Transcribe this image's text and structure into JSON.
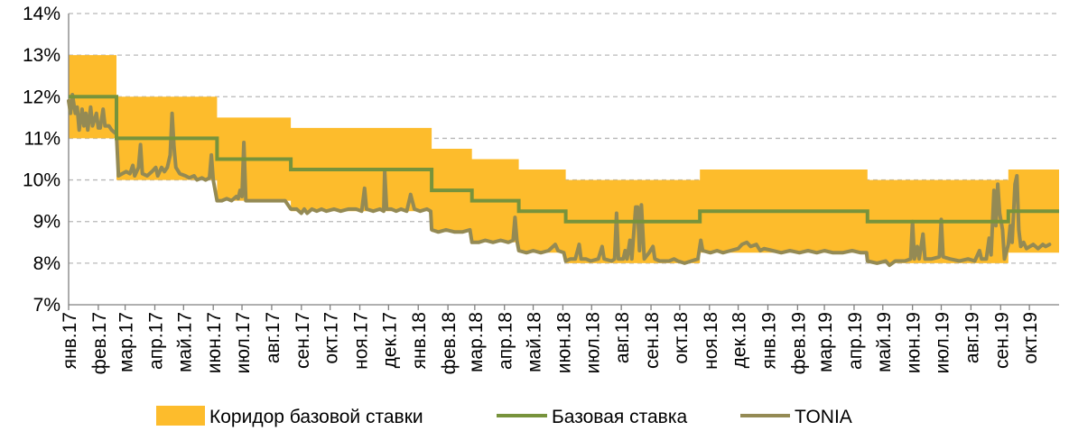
{
  "colors": {
    "corridor": "#FDBC2C",
    "base_rate": "#77933C",
    "tonia": "#948A54",
    "grid": "#B8B8B8"
  },
  "chart_data": {
    "type": "line",
    "title": "",
    "xlabel": "",
    "ylabel": "",
    "ylim": [
      7,
      14
    ],
    "yticks": [
      7,
      8,
      9,
      10,
      11,
      12,
      13,
      14
    ],
    "ytick_labels": [
      "7%",
      "8%",
      "9%",
      "10%",
      "11%",
      "12%",
      "13%",
      "14%"
    ],
    "xlim": [
      "2017-01-01",
      "2019-11-01"
    ],
    "month_labels": [
      "янв.17",
      "фев.17",
      "мар.17",
      "апр.17",
      "май.17",
      "июн.17",
      "июл.17",
      "авг.17",
      "сен.17",
      "окт.17",
      "ноя.17",
      "дек.17",
      "янв.18",
      "фев.18",
      "мар.18",
      "апр.18",
      "май.18",
      "июн.18",
      "июл.18",
      "авг.18",
      "сен.18",
      "окт.18",
      "ноя.18",
      "дек.18",
      "янв.19",
      "фев.19",
      "мар.19",
      "апр.19",
      "май.19",
      "июн.19",
      "июл.19",
      "авг.19",
      "сен.19",
      "окт.19"
    ],
    "grid": true,
    "legend_position": "bottom",
    "legend": [
      {
        "key": "corridor",
        "label": "Коридор базовой ставки"
      },
      {
        "key": "base_rate",
        "label": "Базовая ставка"
      },
      {
        "key": "tonia",
        "label": "TONIA"
      }
    ],
    "series": [
      {
        "name": "Коридор базовой ставки",
        "type": "band",
        "steps": [
          {
            "from": "2017-01-01",
            "to": "2017-02-20",
            "low": 11.0,
            "high": 13.0
          },
          {
            "from": "2017-02-20",
            "to": "2017-06-05",
            "low": 10.0,
            "high": 12.0
          },
          {
            "from": "2017-06-05",
            "to": "2017-08-21",
            "low": 9.5,
            "high": 11.5
          },
          {
            "from": "2017-08-21",
            "to": "2018-01-15",
            "low": 9.25,
            "high": 11.25
          },
          {
            "from": "2018-01-15",
            "to": "2018-02-26",
            "low": 8.75,
            "high": 10.75
          },
          {
            "from": "2018-02-26",
            "to": "2018-04-16",
            "low": 8.5,
            "high": 10.5
          },
          {
            "from": "2018-04-16",
            "to": "2018-06-04",
            "low": 8.25,
            "high": 10.25
          },
          {
            "from": "2018-06-04",
            "to": "2018-10-22",
            "low": 8.0,
            "high": 10.0
          },
          {
            "from": "2018-10-22",
            "to": "2019-04-15",
            "low": 8.25,
            "high": 10.25
          },
          {
            "from": "2019-04-15",
            "to": "2019-09-09",
            "low": 8.0,
            "high": 10.0
          },
          {
            "from": "2019-09-09",
            "to": "2019-11-01",
            "low": 8.25,
            "high": 10.25
          }
        ]
      },
      {
        "name": "Базовая ставка",
        "type": "step",
        "steps": [
          {
            "from": "2017-01-01",
            "value": 12.0
          },
          {
            "from": "2017-02-20",
            "value": 11.0
          },
          {
            "from": "2017-06-05",
            "value": 10.5
          },
          {
            "from": "2017-08-21",
            "value": 10.25
          },
          {
            "from": "2018-01-15",
            "value": 9.75
          },
          {
            "from": "2018-02-26",
            "value": 9.5
          },
          {
            "from": "2018-04-16",
            "value": 9.25
          },
          {
            "from": "2018-06-04",
            "value": 9.0
          },
          {
            "from": "2018-10-22",
            "value": 9.25
          },
          {
            "from": "2019-04-15",
            "value": 9.0
          },
          {
            "from": "2019-09-09",
            "value": 9.25
          }
        ],
        "end": "2019-11-01"
      },
      {
        "name": "TONIA",
        "type": "line",
        "points": [
          [
            "2017-01-01",
            11.9
          ],
          [
            "2017-01-03",
            11.6
          ],
          [
            "2017-01-05",
            12.05
          ],
          [
            "2017-01-08",
            11.6
          ],
          [
            "2017-01-10",
            11.75
          ],
          [
            "2017-01-12",
            11.2
          ],
          [
            "2017-01-15",
            11.7
          ],
          [
            "2017-01-17",
            11.3
          ],
          [
            "2017-01-19",
            11.6
          ],
          [
            "2017-01-21",
            11.2
          ],
          [
            "2017-01-24",
            11.75
          ],
          [
            "2017-01-26",
            11.3
          ],
          [
            "2017-01-30",
            11.6
          ],
          [
            "2017-02-01",
            11.25
          ],
          [
            "2017-02-03",
            11.25
          ],
          [
            "2017-02-06",
            11.7
          ],
          [
            "2017-02-08",
            11.3
          ],
          [
            "2017-02-12",
            11.3
          ],
          [
            "2017-02-15",
            11.2
          ],
          [
            "2017-02-20",
            11.1
          ],
          [
            "2017-02-22",
            10.1
          ],
          [
            "2017-02-26",
            10.15
          ],
          [
            "2017-03-02",
            10.2
          ],
          [
            "2017-03-06",
            10.15
          ],
          [
            "2017-03-09",
            10.35
          ],
          [
            "2017-03-11",
            10.1
          ],
          [
            "2017-03-15",
            10.3
          ],
          [
            "2017-03-17",
            10.85
          ],
          [
            "2017-03-19",
            10.15
          ],
          [
            "2017-03-24",
            10.1
          ],
          [
            "2017-03-29",
            10.2
          ],
          [
            "2017-04-02",
            10.3
          ],
          [
            "2017-04-04",
            10.1
          ],
          [
            "2017-04-08",
            10.3
          ],
          [
            "2017-04-11",
            10.2
          ],
          [
            "2017-04-14",
            10.3
          ],
          [
            "2017-04-17",
            10.6
          ],
          [
            "2017-04-19",
            11.6
          ],
          [
            "2017-04-21",
            10.8
          ],
          [
            "2017-04-23",
            10.3
          ],
          [
            "2017-04-27",
            10.15
          ],
          [
            "2017-05-03",
            10.1
          ],
          [
            "2017-05-07",
            10.05
          ],
          [
            "2017-05-12",
            10.1
          ],
          [
            "2017-05-15",
            10.0
          ],
          [
            "2017-05-20",
            10.05
          ],
          [
            "2017-05-24",
            10.0
          ],
          [
            "2017-05-28",
            10.05
          ],
          [
            "2017-05-30",
            10.6
          ],
          [
            "2017-06-01",
            10.0
          ],
          [
            "2017-06-05",
            9.5
          ],
          [
            "2017-06-10",
            9.5
          ],
          [
            "2017-06-15",
            9.55
          ],
          [
            "2017-06-20",
            9.5
          ],
          [
            "2017-06-25",
            9.6
          ],
          [
            "2017-06-27",
            9.55
          ],
          [
            "2017-06-29",
            9.75
          ],
          [
            "2017-07-01",
            9.6
          ],
          [
            "2017-07-03",
            10.9
          ],
          [
            "2017-07-05",
            9.5
          ],
          [
            "2017-07-12",
            9.5
          ],
          [
            "2017-07-20",
            9.5
          ],
          [
            "2017-07-28",
            9.5
          ],
          [
            "2017-08-05",
            9.5
          ],
          [
            "2017-08-15",
            9.5
          ],
          [
            "2017-08-21",
            9.3
          ],
          [
            "2017-08-27",
            9.3
          ],
          [
            "2017-09-01",
            9.2
          ],
          [
            "2017-09-04",
            9.3
          ],
          [
            "2017-09-07",
            9.2
          ],
          [
            "2017-09-12",
            9.3
          ],
          [
            "2017-09-17",
            9.25
          ],
          [
            "2017-09-22",
            9.3
          ],
          [
            "2017-09-27",
            9.25
          ],
          [
            "2017-10-05",
            9.3
          ],
          [
            "2017-10-12",
            9.25
          ],
          [
            "2017-10-20",
            9.3
          ],
          [
            "2017-10-28",
            9.3
          ],
          [
            "2017-11-03",
            9.25
          ],
          [
            "2017-11-06",
            9.8
          ],
          [
            "2017-11-08",
            9.3
          ],
          [
            "2017-11-15",
            9.25
          ],
          [
            "2017-11-22",
            9.3
          ],
          [
            "2017-11-26",
            9.25
          ],
          [
            "2017-11-27",
            10.2
          ],
          [
            "2017-11-29",
            9.3
          ],
          [
            "2017-12-04",
            9.3
          ],
          [
            "2017-12-09",
            9.25
          ],
          [
            "2017-12-14",
            9.3
          ],
          [
            "2017-12-20",
            9.25
          ],
          [
            "2017-12-24",
            9.65
          ],
          [
            "2017-12-28",
            9.3
          ],
          [
            "2018-01-03",
            9.25
          ],
          [
            "2018-01-10",
            9.3
          ],
          [
            "2018-01-14",
            9.25
          ],
          [
            "2018-01-15",
            8.8
          ],
          [
            "2018-01-22",
            8.75
          ],
          [
            "2018-01-30",
            8.8
          ],
          [
            "2018-02-08",
            8.75
          ],
          [
            "2018-02-16",
            8.75
          ],
          [
            "2018-02-24",
            8.8
          ],
          [
            "2018-02-26",
            8.5
          ],
          [
            "2018-03-05",
            8.5
          ],
          [
            "2018-03-12",
            8.55
          ],
          [
            "2018-03-20",
            8.5
          ],
          [
            "2018-03-28",
            8.55
          ],
          [
            "2018-04-05",
            8.5
          ],
          [
            "2018-04-10",
            8.55
          ],
          [
            "2018-04-12",
            9.1
          ],
          [
            "2018-04-14",
            8.55
          ],
          [
            "2018-04-16",
            8.3
          ],
          [
            "2018-04-24",
            8.25
          ],
          [
            "2018-05-01",
            8.3
          ],
          [
            "2018-05-09",
            8.25
          ],
          [
            "2018-05-17",
            8.3
          ],
          [
            "2018-05-24",
            8.45
          ],
          [
            "2018-05-27",
            8.3
          ],
          [
            "2018-06-02",
            8.25
          ],
          [
            "2018-06-04",
            8.05
          ],
          [
            "2018-06-09",
            8.1
          ],
          [
            "2018-06-14",
            8.1
          ],
          [
            "2018-06-18",
            8.45
          ],
          [
            "2018-06-20",
            8.1
          ],
          [
            "2018-06-25",
            8.1
          ],
          [
            "2018-06-30",
            8.05
          ],
          [
            "2018-07-08",
            8.1
          ],
          [
            "2018-07-12",
            8.4
          ],
          [
            "2018-07-14",
            8.1
          ],
          [
            "2018-07-22",
            8.05
          ],
          [
            "2018-07-25",
            8.1
          ],
          [
            "2018-07-27",
            9.2
          ],
          [
            "2018-07-29",
            8.1
          ],
          [
            "2018-08-03",
            8.1
          ],
          [
            "2018-08-05",
            8.3
          ],
          [
            "2018-08-07",
            8.1
          ],
          [
            "2018-08-10",
            8.55
          ],
          [
            "2018-08-12",
            8.1
          ],
          [
            "2018-08-16",
            9.35
          ],
          [
            "2018-08-18",
            9.35
          ],
          [
            "2018-08-20",
            8.3
          ],
          [
            "2018-08-22",
            9.4
          ],
          [
            "2018-08-25",
            8.1
          ],
          [
            "2018-08-30",
            8.25
          ],
          [
            "2018-09-03",
            8.4
          ],
          [
            "2018-09-05",
            8.1
          ],
          [
            "2018-09-10",
            8.05
          ],
          [
            "2018-09-14",
            8.05
          ],
          [
            "2018-09-20",
            8.05
          ],
          [
            "2018-09-25",
            8.1
          ],
          [
            "2018-09-29",
            8.05
          ],
          [
            "2018-10-06",
            8.0
          ],
          [
            "2018-10-13",
            8.05
          ],
          [
            "2018-10-20",
            8.1
          ],
          [
            "2018-10-23",
            8.55
          ],
          [
            "2018-10-25",
            8.3
          ],
          [
            "2018-11-02",
            8.25
          ],
          [
            "2018-11-09",
            8.3
          ],
          [
            "2018-11-15",
            8.25
          ],
          [
            "2018-11-23",
            8.3
          ],
          [
            "2018-12-01",
            8.35
          ],
          [
            "2018-12-05",
            8.45
          ],
          [
            "2018-12-10",
            8.5
          ],
          [
            "2018-12-14",
            8.4
          ],
          [
            "2018-12-20",
            8.45
          ],
          [
            "2018-12-24",
            8.3
          ],
          [
            "2018-12-28",
            8.35
          ],
          [
            "2019-01-06",
            8.3
          ],
          [
            "2019-01-15",
            8.25
          ],
          [
            "2019-01-24",
            8.3
          ],
          [
            "2019-02-03",
            8.25
          ],
          [
            "2019-02-12",
            8.3
          ],
          [
            "2019-02-21",
            8.25
          ],
          [
            "2019-03-01",
            8.3
          ],
          [
            "2019-03-10",
            8.25
          ],
          [
            "2019-03-20",
            8.25
          ],
          [
            "2019-03-30",
            8.3
          ],
          [
            "2019-04-08",
            8.25
          ],
          [
            "2019-04-14",
            8.25
          ],
          [
            "2019-04-15",
            8.05
          ],
          [
            "2019-04-25",
            8.0
          ],
          [
            "2019-05-04",
            8.05
          ],
          [
            "2019-05-08",
            7.95
          ],
          [
            "2019-05-14",
            8.05
          ],
          [
            "2019-05-24",
            8.05
          ],
          [
            "2019-05-30",
            8.1
          ],
          [
            "2019-06-01",
            9.0
          ],
          [
            "2019-06-03",
            8.1
          ],
          [
            "2019-06-06",
            8.4
          ],
          [
            "2019-06-08",
            8.1
          ],
          [
            "2019-06-12",
            8.7
          ],
          [
            "2019-06-14",
            8.1
          ],
          [
            "2019-06-21",
            8.1
          ],
          [
            "2019-06-29",
            8.15
          ],
          [
            "2019-07-01",
            9.05
          ],
          [
            "2019-07-03",
            8.15
          ],
          [
            "2019-07-10",
            8.1
          ],
          [
            "2019-07-20",
            8.05
          ],
          [
            "2019-07-29",
            8.1
          ],
          [
            "2019-08-05",
            8.05
          ],
          [
            "2019-08-10",
            8.3
          ],
          [
            "2019-08-12",
            8.1
          ],
          [
            "2019-08-17",
            8.1
          ],
          [
            "2019-08-20",
            8.6
          ],
          [
            "2019-08-22",
            8.2
          ],
          [
            "2019-08-25",
            9.75
          ],
          [
            "2019-08-27",
            8.9
          ],
          [
            "2019-08-29",
            9.9
          ],
          [
            "2019-08-31",
            9.2
          ],
          [
            "2019-09-03",
            8.8
          ],
          [
            "2019-09-05",
            8.1
          ],
          [
            "2019-09-09",
            8.45
          ],
          [
            "2019-09-11",
            8.9
          ],
          [
            "2019-09-13",
            8.5
          ],
          [
            "2019-09-16",
            9.9
          ],
          [
            "2019-09-18",
            10.1
          ],
          [
            "2019-09-20",
            8.8
          ],
          [
            "2019-09-22",
            8.4
          ],
          [
            "2019-09-25",
            8.5
          ],
          [
            "2019-09-28",
            8.35
          ],
          [
            "2019-10-05",
            8.45
          ],
          [
            "2019-10-10",
            8.35
          ],
          [
            "2019-10-15",
            8.45
          ],
          [
            "2019-10-18",
            8.4
          ],
          [
            "2019-10-22",
            8.45
          ]
        ]
      }
    ]
  }
}
